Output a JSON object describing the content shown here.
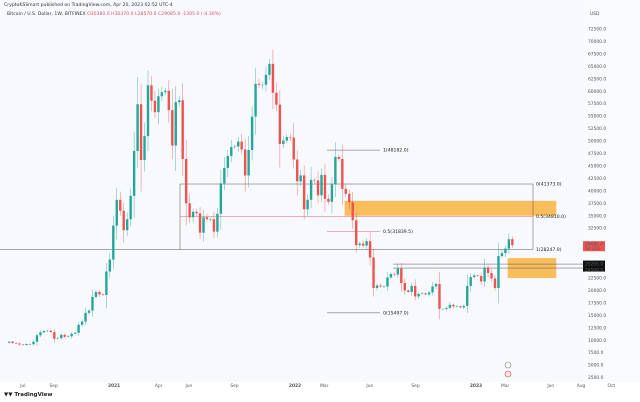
{
  "header": {
    "published": "CryptoKSSmart published on TradingView.com, Apr 20, 2023 02:52 UTC-4",
    "symbol": "Bitcoin / U.S. Dollar, 1W, BITFINEX",
    "ohlc": "O30380.0 H30370.0 L28570.0 C29085.0 -1305.0 (-4.30%)"
  },
  "logo": "TradingView",
  "chart_data": {
    "type": "candlestick",
    "interval": "1W",
    "start": "2020-06-01",
    "currency": "USD",
    "ylim": [
      0,
      75000
    ],
    "scale": "linear",
    "grid": false,
    "first_open": 9500,
    "closes": [
      9700,
      9450,
      9350,
      9150,
      9050,
      9250,
      9200,
      9700,
      11000,
      11600,
      11850,
      11900,
      11650,
      10300,
      10400,
      11080,
      10700,
      10800,
      11300,
      11500,
      13100,
      13750,
      15500,
      15950,
      18700,
      19700,
      19200,
      19100,
      23800,
      26200,
      33000,
      38200,
      36000,
      32100,
      34300,
      39000,
      48000,
      57400,
      46200,
      51000,
      61200,
      58100,
      55800,
      59000,
      59800,
      60100,
      56200,
      49100,
      57800,
      58200,
      46400,
      37500,
      34700,
      35800,
      35500,
      31600,
      34700,
      34300,
      34300,
      31800,
      35400,
      41500,
      44600,
      47000,
      48800,
      48900,
      49900,
      48300,
      43100,
      48200,
      54900,
      61500,
      61300,
      61300,
      63300,
      65500,
      59700,
      57300,
      49400,
      50100,
      50800,
      50700,
      46300,
      41900,
      43100,
      36300,
      38200,
      42200,
      42100,
      39100,
      43200,
      38400,
      37800,
      41300,
      46800,
      46400,
      40400,
      39400,
      37700,
      34100,
      29100,
      29400,
      29000,
      29900,
      26600,
      20500,
      21000,
      20800,
      20800,
      22600,
      23300,
      23200,
      24400,
      21500,
      20000,
      19700,
      20900,
      18800,
      19300,
      19400,
      19200,
      19600,
      20800,
      21300,
      16300,
      16300,
      16500,
      17100,
      16800,
      16800,
      16600,
      16900,
      20900,
      22700,
      23000,
      22900,
      21800,
      24600,
      23500,
      22400,
      20500,
      26900,
      27500,
      28400,
      30300,
      29085
    ],
    "y_ticks": [
      "72500.0",
      "70000.0",
      "67500.0",
      "65000.0",
      "62500.0",
      "60000.0",
      "57500.0",
      "55000.0",
      "52500.0",
      "50000.0",
      "47500.0",
      "45000.0",
      "42500.0",
      "40000.0",
      "37500.0",
      "35000.0",
      "32500.0",
      "22500.0",
      "20000.0",
      "17500.0",
      "15000.0",
      "12500.0",
      "10000.0",
      "7500.0",
      "5000.0",
      "2500.0"
    ],
    "y_tick_values": [
      72500,
      70000,
      67500,
      65000,
      62500,
      60000,
      57500,
      55000,
      52500,
      50000,
      47500,
      45000,
      42500,
      40000,
      37500,
      35000,
      32500,
      22500,
      20000,
      17500,
      15000,
      12500,
      10000,
      7500,
      5000,
      2500
    ],
    "x_ticks": [
      "Jul",
      "Sep",
      "2021",
      "Apr",
      "Jun",
      "Sep",
      "2022",
      "Mar",
      "Jun",
      "Sep",
      "2023",
      "Mar",
      "Jun",
      "Aug",
      "Oct"
    ],
    "x_tick_dates": [
      "2020-07-01",
      "2020-09-01",
      "2021-01-01",
      "2021-04-01",
      "2021-06-01",
      "2021-09-01",
      "2022-01-01",
      "2022-03-01",
      "2022-06-01",
      "2022-09-01",
      "2023-01-01",
      "2023-03-01",
      "2023-06-01",
      "2023-08-01",
      "2023-10-01"
    ],
    "price_labels": {
      "current": "29085.0",
      "current_sub": "5d 21h",
      "level_a": "25295.0",
      "level_b": "24500.0"
    },
    "unit_label": "USD",
    "fib_levels_right": [
      {
        "label": "0(41373.0)",
        "price": 41373
      },
      {
        "label": "0.5(34810.0)",
        "price": 34810
      },
      {
        "label": "1(28247.0)",
        "price": 28247
      }
    ],
    "fib_levels_mid": [
      {
        "label": "1(48182.0)",
        "price": 48182
      },
      {
        "label": "0.5(31839.5)",
        "price": 31839.5
      },
      {
        "label": "0(15497.0)",
        "price": 15497
      }
    ],
    "zones": [
      {
        "from": "2022-04-11",
        "to": "2023-06-12",
        "low": 35000,
        "high": 38000
      },
      {
        "from": "2023-03-06",
        "to": "2023-06-12",
        "low": 22500,
        "high": 26500
      }
    ],
    "colors": {
      "up": "#26a69a",
      "down": "#ef5350",
      "zone": "#f9a825",
      "background": "#f7f9fd",
      "fib_mid": "#e06070"
    }
  }
}
